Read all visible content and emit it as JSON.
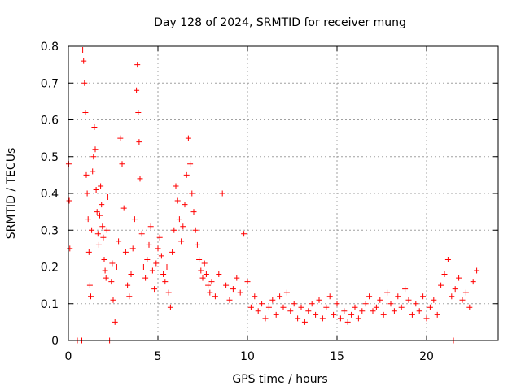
{
  "chart_data": {
    "type": "scatter",
    "title": "Day 128 of 2024, SRMTID for receiver mung",
    "xlabel": "GPS time / hours",
    "ylabel": "SRMTID / TECUs",
    "xlim": [
      0,
      24
    ],
    "ylim": [
      0,
      0.8
    ],
    "x_ticks": [
      0,
      5,
      10,
      15,
      20
    ],
    "x_tick_labels": [
      "0",
      "5",
      "10",
      "15",
      "20"
    ],
    "y_ticks": [
      0,
      0.1,
      0.2,
      0.3,
      0.4,
      0.5,
      0.6,
      0.7,
      0.8
    ],
    "y_tick_labels": [
      "0",
      "0.1",
      "0.2",
      "0.3",
      "0.4",
      "0.5",
      "0.6",
      "0.7",
      "0.8"
    ],
    "grid": true,
    "marker": "plus",
    "color": "#ff0000",
    "series": [
      {
        "name": "SRMTID",
        "x": [
          0.02,
          0.05,
          0.08,
          0.5,
          0.75,
          0.8,
          0.85,
          0.9,
          0.95,
          1.0,
          1.05,
          1.1,
          1.15,
          1.2,
          1.25,
          1.3,
          1.35,
          1.4,
          1.45,
          1.5,
          1.55,
          1.6,
          1.65,
          1.7,
          1.75,
          1.8,
          1.85,
          1.9,
          1.95,
          2.0,
          2.05,
          2.1,
          2.15,
          2.2,
          2.3,
          2.4,
          2.45,
          2.5,
          2.6,
          2.7,
          2.8,
          2.9,
          3.0,
          3.1,
          3.2,
          3.3,
          3.4,
          3.5,
          3.6,
          3.7,
          3.8,
          3.85,
          3.9,
          3.95,
          4.0,
          4.1,
          4.2,
          4.3,
          4.4,
          4.5,
          4.6,
          4.7,
          4.8,
          4.9,
          5.0,
          5.1,
          5.2,
          5.3,
          5.4,
          5.5,
          5.6,
          5.7,
          5.8,
          5.9,
          6.0,
          6.1,
          6.2,
          6.3,
          6.4,
          6.5,
          6.6,
          6.7,
          6.8,
          6.9,
          7.0,
          7.1,
          7.2,
          7.3,
          7.4,
          7.5,
          7.6,
          7.7,
          7.8,
          7.9,
          8.0,
          8.2,
          8.4,
          8.6,
          8.8,
          9.0,
          9.2,
          9.4,
          9.6,
          9.8,
          10.0,
          10.2,
          10.4,
          10.6,
          10.8,
          11.0,
          11.2,
          11.4,
          11.6,
          11.8,
          12.0,
          12.2,
          12.4,
          12.6,
          12.8,
          13.0,
          13.2,
          13.4,
          13.6,
          13.8,
          14.0,
          14.2,
          14.4,
          14.6,
          14.8,
          15.0,
          15.2,
          15.4,
          15.6,
          15.8,
          16.0,
          16.2,
          16.4,
          16.6,
          16.8,
          17.0,
          17.2,
          17.4,
          17.6,
          17.8,
          18.0,
          18.2,
          18.4,
          18.6,
          18.8,
          19.0,
          19.2,
          19.4,
          19.6,
          19.8,
          20.0,
          20.2,
          20.4,
          20.6,
          20.8,
          21.0,
          21.2,
          21.4,
          21.5,
          21.6,
          21.8,
          22.0,
          22.2,
          22.4,
          22.6,
          22.8
        ],
        "values": [
          0.48,
          0.38,
          0.25,
          0.0,
          0.0,
          0.79,
          0.76,
          0.7,
          0.62,
          0.45,
          0.4,
          0.33,
          0.24,
          0.15,
          0.12,
          0.3,
          0.46,
          0.5,
          0.58,
          0.52,
          0.41,
          0.35,
          0.29,
          0.26,
          0.34,
          0.42,
          0.37,
          0.31,
          0.28,
          0.22,
          0.19,
          0.17,
          0.3,
          0.39,
          0.0,
          0.16,
          0.21,
          0.11,
          0.05,
          0.2,
          0.27,
          0.55,
          0.48,
          0.36,
          0.24,
          0.15,
          0.12,
          0.18,
          0.25,
          0.33,
          0.68,
          0.75,
          0.62,
          0.54,
          0.44,
          0.29,
          0.2,
          0.17,
          0.22,
          0.26,
          0.31,
          0.19,
          0.14,
          0.21,
          0.25,
          0.28,
          0.23,
          0.18,
          0.16,
          0.2,
          0.13,
          0.09,
          0.24,
          0.3,
          0.42,
          0.38,
          0.33,
          0.27,
          0.31,
          0.37,
          0.45,
          0.55,
          0.48,
          0.4,
          0.35,
          0.3,
          0.26,
          0.22,
          0.19,
          0.17,
          0.21,
          0.18,
          0.15,
          0.13,
          0.16,
          0.12,
          0.18,
          0.4,
          0.15,
          0.11,
          0.14,
          0.17,
          0.13,
          0.29,
          0.16,
          0.09,
          0.12,
          0.08,
          0.1,
          0.06,
          0.09,
          0.11,
          0.07,
          0.12,
          0.09,
          0.13,
          0.08,
          0.1,
          0.06,
          0.09,
          0.05,
          0.08,
          0.1,
          0.07,
          0.11,
          0.06,
          0.09,
          0.12,
          0.07,
          0.1,
          0.06,
          0.08,
          0.05,
          0.07,
          0.09,
          0.06,
          0.08,
          0.1,
          0.12,
          0.08,
          0.09,
          0.11,
          0.07,
          0.13,
          0.1,
          0.08,
          0.12,
          0.09,
          0.14,
          0.11,
          0.07,
          0.1,
          0.08,
          0.12,
          0.06,
          0.09,
          0.11,
          0.07,
          0.15,
          0.18,
          0.22,
          0.12,
          0.0,
          0.14,
          0.17,
          0.11,
          0.13,
          0.09,
          0.16,
          0.19
        ]
      }
    ]
  }
}
